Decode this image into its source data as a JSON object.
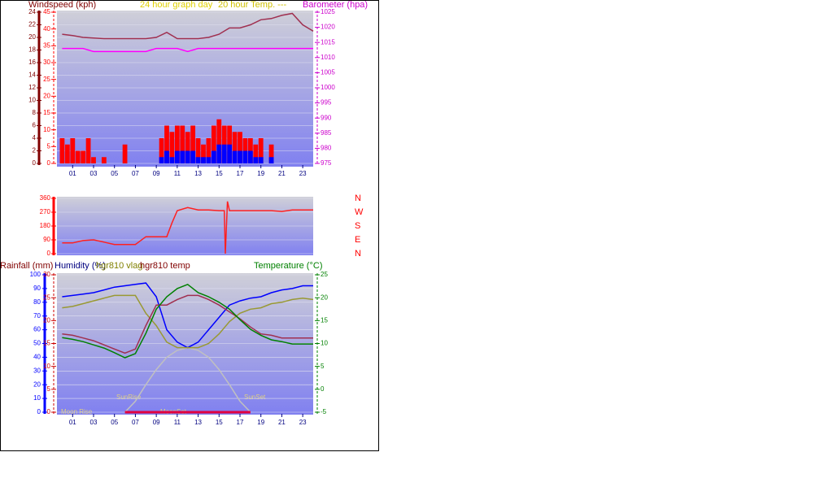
{
  "chart_data": [
    {
      "type": "bar",
      "y_label": "Windspeed (kph)",
      "title": "24 hour graph day",
      "subtitle": "20 hour Temp. ---",
      "y2_label": "Barometer (hpa)",
      "xlim": [
        -0.5,
        24
      ],
      "xticks": [
        {
          "value": 1,
          "label": "01"
        },
        {
          "value": 3,
          "label": "03"
        },
        {
          "value": 5,
          "label": "05"
        },
        {
          "value": 7,
          "label": "07"
        },
        {
          "value": 9,
          "label": "09"
        },
        {
          "value": 11,
          "label": "11"
        },
        {
          "value": 13,
          "label": "13"
        },
        {
          "value": 15,
          "label": "15"
        },
        {
          "value": 17,
          "label": "17"
        },
        {
          "value": 19,
          "label": "19"
        },
        {
          "value": 21,
          "label": "21"
        },
        {
          "value": 23,
          "label": "23"
        }
      ],
      "ylim": [
        0,
        24
      ],
      "yticks": [
        0,
        2,
        4,
        6,
        8,
        10,
        12,
        14,
        16,
        18,
        20,
        22,
        24
      ],
      "ycolor": "#800000",
      "y3lim": [
        0,
        45
      ],
      "y3ticks": [
        0,
        5,
        10,
        15,
        20,
        25,
        30,
        35,
        40,
        45
      ],
      "y3color": "#ff0000",
      "y2lim": [
        975,
        1025
      ],
      "y2ticks": [
        975,
        980,
        985,
        990,
        995,
        1000,
        1005,
        1010,
        1015,
        1020,
        1025
      ],
      "y2color": "#cc00cc",
      "grid": true,
      "series": [
        {
          "type": "bar",
          "color": "#ff0000",
          "x": [
            0,
            0.5,
            1,
            1.5,
            2,
            2.5,
            3,
            3.5,
            4,
            4.5,
            5,
            5.5,
            6,
            6.5,
            7,
            7.5,
            8,
            8.5,
            9,
            9.5,
            10,
            10.5,
            11,
            11.5,
            12,
            12.5,
            13,
            13.5,
            14,
            14.5,
            15,
            15.5,
            16,
            16.5,
            17,
            17.5,
            18,
            18.5,
            19,
            19.5,
            20,
            20.5,
            21,
            21.5,
            22,
            22.5,
            23,
            23.5
          ],
          "values": [
            4,
            3,
            4,
            2,
            2,
            4,
            1,
            0,
            1,
            0,
            0,
            0,
            3,
            0,
            0,
            0,
            0,
            0,
            0,
            4,
            6,
            5,
            6,
            6,
            5,
            6,
            4,
            3,
            4,
            6,
            7,
            6,
            6,
            5,
            5,
            4,
            4,
            3,
            4,
            0,
            3,
            0,
            0,
            0,
            0,
            0,
            0,
            0
          ]
        },
        {
          "type": "bar",
          "color": "#0000ff",
          "x": [
            0,
            0.5,
            1,
            1.5,
            2,
            2.5,
            3,
            3.5,
            4,
            4.5,
            5,
            5.5,
            6,
            6.5,
            7,
            7.5,
            8,
            8.5,
            9,
            9.5,
            10,
            10.5,
            11,
            11.5,
            12,
            12.5,
            13,
            13.5,
            14,
            14.5,
            15,
            15.5,
            16,
            16.5,
            17,
            17.5,
            18,
            18.5,
            19,
            19.5,
            20,
            20.5,
            21,
            21.5,
            22,
            22.5,
            23,
            23.5
          ],
          "values": [
            0,
            0,
            0,
            0,
            0,
            0,
            0,
            0,
            0,
            0,
            0,
            0,
            0,
            0,
            0,
            0,
            0,
            0,
            0,
            1,
            2,
            1,
            2,
            2,
            2,
            2,
            1,
            1,
            1,
            2,
            3,
            3,
            3,
            2,
            2,
            2,
            2,
            1,
            1,
            0,
            1,
            0,
            0,
            0,
            0,
            0,
            0,
            0
          ]
        },
        {
          "type": "line",
          "color": "#a03050",
          "x": [
            0,
            1,
            2,
            3,
            4,
            5,
            6,
            7,
            8,
            9,
            10,
            11,
            12,
            13,
            14,
            15,
            16,
            17,
            18,
            19,
            20,
            21,
            22,
            23,
            24
          ],
          "values": [
            20.5,
            20.3,
            20,
            19.9,
            19.8,
            19.8,
            19.8,
            19.8,
            19.8,
            20,
            20.8,
            19.8,
            19.8,
            19.8,
            20,
            20.5,
            21.5,
            21.5,
            22,
            22.8,
            23,
            23.5,
            23.8,
            22,
            21
          ]
        },
        {
          "type": "line",
          "color": "#ff00ff",
          "axis": "y2",
          "x": [
            0,
            1,
            2,
            3,
            4,
            5,
            6,
            7,
            8,
            9,
            10,
            11,
            12,
            13,
            14,
            15,
            16,
            17,
            18,
            19,
            20,
            21,
            22,
            23,
            24
          ],
          "values": [
            1013,
            1013,
            1013,
            1012,
            1012,
            1012,
            1012,
            1012,
            1012,
            1013,
            1013,
            1013,
            1012,
            1013,
            1013,
            1013,
            1013,
            1013,
            1013,
            1013,
            1013,
            1013,
            1013,
            1013,
            1013
          ]
        }
      ]
    },
    {
      "type": "line",
      "xlim": [
        -0.5,
        24
      ],
      "ylim": [
        0,
        360
      ],
      "yticks": [
        0,
        90,
        180,
        270,
        360
      ],
      "ycolor": "#ff0000",
      "y2lim": [
        0,
        360
      ],
      "y2ticks": [
        {
          "value": 360,
          "label": "N"
        },
        {
          "value": 270,
          "label": "W"
        },
        {
          "value": 180,
          "label": "S"
        },
        {
          "value": 90,
          "label": "E"
        },
        {
          "value": 0,
          "label": "N"
        }
      ],
      "y2color": "#ff0000",
      "grid": true,
      "series": [
        {
          "type": "line",
          "color": "#ff2020",
          "x": [
            0,
            1,
            2,
            3,
            4,
            5,
            6,
            7,
            8,
            9,
            10,
            10.5,
            11,
            12,
            13,
            14,
            15,
            15.5,
            15.6,
            15.8,
            16,
            17,
            18,
            19,
            20,
            21,
            22,
            23,
            24
          ],
          "values": [
            70,
            70,
            85,
            90,
            75,
            60,
            60,
            60,
            110,
            110,
            110,
            200,
            280,
            300,
            285,
            285,
            280,
            280,
            0,
            340,
            280,
            280,
            280,
            280,
            280,
            275,
            285,
            285,
            285
          ]
        }
      ]
    },
    {
      "type": "line",
      "y3_label": "Rainfall (mm)",
      "y_label": "Humidity (%)",
      "y2_label": "Temperature (°C)",
      "annotations": [
        "SunRise",
        "SunSet",
        "Moon Rise",
        "MoonSet"
      ],
      "xlim": [
        -0.5,
        24
      ],
      "xticks": [
        {
          "value": 1,
          "label": "01"
        },
        {
          "value": 3,
          "label": "03"
        },
        {
          "value": 5,
          "label": "05"
        },
        {
          "value": 7,
          "label": "07"
        },
        {
          "value": 9,
          "label": "09"
        },
        {
          "value": 11,
          "label": "11"
        },
        {
          "value": 13,
          "label": "13"
        },
        {
          "value": 15,
          "label": "15"
        },
        {
          "value": 17,
          "label": "17"
        },
        {
          "value": 19,
          "label": "19"
        },
        {
          "value": 21,
          "label": "21"
        },
        {
          "value": 23,
          "label": "23"
        }
      ],
      "ylim": [
        0,
        100
      ],
      "yticks": [
        0,
        10,
        20,
        30,
        40,
        50,
        60,
        70,
        80,
        90,
        100
      ],
      "ycolor": "#0000ff",
      "y3lim": [
        0,
        30
      ],
      "y3ticks": [
        0,
        5,
        10,
        15,
        20,
        25,
        30
      ],
      "y3color": "#cc0000",
      "y2lim": [
        -5,
        25
      ],
      "y2ticks": [
        -5,
        0,
        5,
        10,
        15,
        20,
        25
      ],
      "y2color": "#008000",
      "grid": true,
      "series": [
        {
          "type": "line",
          "color": "#c0c0c0",
          "x": [
            0,
            1,
            2,
            3,
            4,
            5,
            6,
            7,
            8,
            9,
            10,
            11,
            12,
            13,
            14,
            15,
            16,
            17,
            18,
            19,
            20,
            21,
            22,
            23,
            24
          ],
          "values": [
            null,
            null,
            null,
            null,
            null,
            null,
            0,
            8,
            20,
            31,
            40,
            45,
            47,
            45,
            40,
            31,
            20,
            8,
            0,
            null,
            null,
            null,
            null,
            null,
            null
          ]
        },
        {
          "type": "line",
          "color": "#0000ff",
          "x": [
            0,
            1,
            2,
            3,
            4,
            5,
            6,
            7,
            8,
            9,
            10,
            11,
            12,
            13,
            14,
            15,
            16,
            17,
            18,
            19,
            20,
            21,
            22,
            23,
            24
          ],
          "values": [
            84,
            85,
            86,
            87,
            89,
            91,
            92,
            93,
            94,
            84,
            60,
            51,
            47,
            51,
            60,
            69,
            78,
            81,
            83,
            84,
            87,
            89,
            90,
            92,
            92
          ]
        },
        {
          "type": "line",
          "name": "hgr810 vlag",
          "color": "#999933",
          "x": [
            0,
            1,
            2,
            3,
            4,
            5,
            6,
            7,
            8,
            9,
            10,
            11,
            12,
            13,
            14,
            15,
            16,
            17,
            18,
            19,
            20,
            21,
            22,
            23,
            24
          ],
          "values": [
            76,
            77,
            79,
            81,
            83,
            85,
            85,
            85,
            72,
            63,
            51,
            47,
            47,
            47,
            50,
            57,
            66,
            72,
            75,
            76,
            79,
            80,
            82,
            83,
            82
          ]
        },
        {
          "type": "line",
          "name": "hgr810 temp",
          "color": "#a03050",
          "x": [
            0,
            1,
            2,
            3,
            4,
            5,
            6,
            7,
            8,
            9,
            10,
            11,
            12,
            13,
            14,
            15,
            16,
            17,
            18,
            19,
            20,
            21,
            22,
            23,
            24
          ],
          "values": [
            57,
            56,
            54,
            52,
            49,
            46,
            43,
            46,
            63,
            78,
            78,
            82,
            85,
            85,
            82,
            78,
            73,
            68,
            62,
            57,
            56,
            54,
            54,
            54,
            54
          ]
        },
        {
          "type": "line",
          "color": "#008000",
          "axis": "y2",
          "x": [
            0,
            1,
            2,
            3,
            4,
            5,
            6,
            7,
            8,
            9,
            10,
            11,
            12,
            13,
            14,
            15,
            16,
            17,
            18,
            19,
            20,
            21,
            22,
            23,
            24
          ],
          "values": [
            11.3,
            10.9,
            10.4,
            9.7,
            9,
            8,
            6.9,
            7.8,
            12.2,
            17.5,
            20.2,
            22,
            22.9,
            21.1,
            20.2,
            19,
            17.5,
            15.2,
            13.1,
            11.8,
            10.8,
            10.4,
            9.9,
            9.9,
            9.9
          ]
        },
        {
          "type": "line",
          "color": "#e00040",
          "width": 3,
          "x": [
            0,
            1,
            2,
            3,
            4,
            5,
            6,
            7,
            8,
            9,
            10,
            11,
            12,
            13,
            14,
            15,
            16,
            17,
            18,
            19,
            20,
            21,
            22,
            23,
            24
          ],
          "values": [
            null,
            null,
            null,
            null,
            null,
            null,
            0,
            0,
            0,
            0,
            0,
            0,
            0,
            0,
            0,
            0,
            0,
            0,
            0,
            null,
            null,
            null,
            null,
            null,
            null
          ]
        }
      ]
    }
  ]
}
